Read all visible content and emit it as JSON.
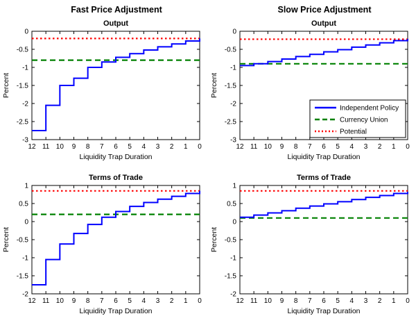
{
  "page": {
    "column_titles": [
      "Fast Price Adjustment",
      "Slow Price Adjustment"
    ]
  },
  "legend": {
    "entries": [
      {
        "label": "Independent Policy",
        "color": "#0000ff",
        "dash": ""
      },
      {
        "label": "Currency Union",
        "color": "#008000",
        "dash": "7 4"
      },
      {
        "label": "Potential",
        "color": "#ff0000",
        "dash": "2 3"
      }
    ]
  },
  "chart_data": [
    {
      "type": "line",
      "id": "fast-output",
      "title": "Output",
      "xlabel": "Liquidity Trap Duration",
      "ylabel": "Percent",
      "x_reversed": true,
      "xticks": [
        12,
        11,
        10,
        9,
        8,
        7,
        6,
        5,
        4,
        3,
        2,
        1,
        0
      ],
      "ylim": [
        -3,
        0
      ],
      "yticks": [
        0,
        -0.5,
        -1,
        -1.5,
        -2,
        -2.5,
        -3
      ],
      "show_legend": false,
      "series": [
        {
          "name": "Independent Policy",
          "type": "stairs",
          "color": "#0000ff",
          "dash": "",
          "values": [
            -2.75,
            -2.05,
            -1.5,
            -1.3,
            -1.0,
            -0.85,
            -0.72,
            -0.62,
            -0.52,
            -0.43,
            -0.35,
            -0.27,
            -0.2
          ]
        },
        {
          "name": "Currency Union",
          "type": "hline",
          "color": "#008000",
          "dash": "8 5",
          "value": -0.8
        },
        {
          "name": "Potential",
          "type": "hline",
          "color": "#ff0000",
          "dash": "2.5 3.5",
          "value": -0.2
        }
      ]
    },
    {
      "type": "line",
      "id": "slow-output",
      "title": "Output",
      "xlabel": "Liquidity Trap Duration",
      "ylabel": "Percent",
      "x_reversed": true,
      "xticks": [
        12,
        11,
        10,
        9,
        8,
        7,
        6,
        5,
        4,
        3,
        2,
        1,
        0
      ],
      "ylim": [
        -3,
        0
      ],
      "yticks": [
        0,
        -0.5,
        -1,
        -1.5,
        -2,
        -2.5,
        -3
      ],
      "show_legend": true,
      "series": [
        {
          "name": "Independent Policy",
          "type": "stairs",
          "color": "#0000ff",
          "dash": "",
          "values": [
            -0.95,
            -0.9,
            -0.84,
            -0.77,
            -0.7,
            -0.64,
            -0.57,
            -0.51,
            -0.44,
            -0.38,
            -0.32,
            -0.26,
            -0.21
          ]
        },
        {
          "name": "Currency Union",
          "type": "hline",
          "color": "#008000",
          "dash": "8 5",
          "value": -0.9
        },
        {
          "name": "Potential",
          "type": "hline",
          "color": "#ff0000",
          "dash": "2.5 3.5",
          "value": -0.22
        }
      ]
    },
    {
      "type": "line",
      "id": "fast-terms-of-trade",
      "title": "Terms of Trade",
      "xlabel": "Liquidity Trap Duration",
      "ylabel": "Percent",
      "x_reversed": true,
      "xticks": [
        12,
        11,
        10,
        9,
        8,
        7,
        6,
        5,
        4,
        3,
        2,
        1,
        0
      ],
      "ylim": [
        -2,
        1
      ],
      "yticks": [
        1,
        0.5,
        0,
        -0.5,
        -1,
        -1.5,
        -2
      ],
      "show_legend": false,
      "series": [
        {
          "name": "Independent Policy",
          "type": "stairs",
          "color": "#0000ff",
          "dash": "",
          "values": [
            -1.75,
            -1.05,
            -0.62,
            -0.33,
            -0.08,
            0.12,
            0.28,
            0.42,
            0.53,
            0.62,
            0.7,
            0.78,
            0.85
          ]
        },
        {
          "name": "Currency Union",
          "type": "hline",
          "color": "#008000",
          "dash": "8 5",
          "value": 0.2
        },
        {
          "name": "Potential",
          "type": "hline",
          "color": "#ff0000",
          "dash": "2.5 3.5",
          "value": 0.85
        }
      ]
    },
    {
      "type": "line",
      "id": "slow-terms-of-trade",
      "title": "Terms of Trade",
      "xlabel": "Liquidity Trap Duration",
      "ylabel": "Percent",
      "x_reversed": true,
      "xticks": [
        12,
        11,
        10,
        9,
        8,
        7,
        6,
        5,
        4,
        3,
        2,
        1,
        0
      ],
      "ylim": [
        -2,
        1
      ],
      "yticks": [
        1,
        0.5,
        0,
        -0.5,
        -1,
        -1.5,
        -2
      ],
      "show_legend": false,
      "series": [
        {
          "name": "Independent Policy",
          "type": "stairs",
          "color": "#0000ff",
          "dash": "",
          "values": [
            0.12,
            0.18,
            0.24,
            0.3,
            0.37,
            0.43,
            0.49,
            0.55,
            0.61,
            0.67,
            0.72,
            0.78,
            0.82
          ]
        },
        {
          "name": "Currency Union",
          "type": "hline",
          "color": "#008000",
          "dash": "8 5",
          "value": 0.1
        },
        {
          "name": "Potential",
          "type": "hline",
          "color": "#ff0000",
          "dash": "2.5 3.5",
          "value": 0.85
        }
      ]
    }
  ]
}
